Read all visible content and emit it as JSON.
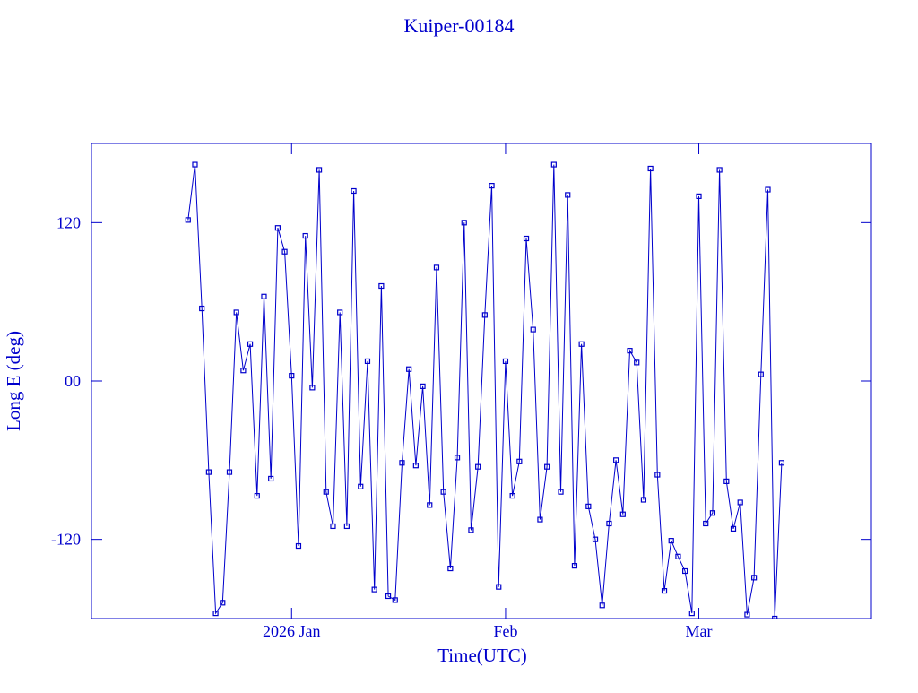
{
  "chart_data": {
    "type": "line",
    "title": "Kuiper-00184",
    "x_label": "Time(UTC)",
    "y_label": "Long E (deg)",
    "xlim": [
      "2025-12-03",
      "2026-03-26"
    ],
    "xticks": [
      {
        "value": "2026-01-01",
        "label": "2026 Jan"
      },
      {
        "value": "2026-02-01",
        "label": "Feb"
      },
      {
        "value": "2026-03-01",
        "label": "Mar"
      }
    ],
    "ylim": [
      -180,
      180
    ],
    "yticks": [
      {
        "value": 120,
        "label": "120"
      },
      {
        "value": 0,
        "label": "00"
      },
      {
        "value": -120,
        "label": "-120"
      }
    ],
    "series": [
      {
        "color": "#0000cc",
        "x": [
          "2025-12-17",
          "2025-12-18",
          "2025-12-19",
          "2025-12-20",
          "2025-12-21",
          "2025-12-22",
          "2025-12-23",
          "2025-12-24",
          "2025-12-25",
          "2025-12-26",
          "2025-12-27",
          "2025-12-28",
          "2025-12-29",
          "2025-12-30",
          "2025-12-31",
          "2026-01-01",
          "2026-01-02",
          "2026-01-03",
          "2026-01-04",
          "2026-01-05",
          "2026-01-06",
          "2026-01-07",
          "2026-01-08",
          "2026-01-09",
          "2026-01-10",
          "2026-01-11",
          "2026-01-12",
          "2026-01-13",
          "2026-01-14",
          "2026-01-15",
          "2026-01-16",
          "2026-01-17",
          "2026-01-18",
          "2026-01-19",
          "2026-01-20",
          "2026-01-21",
          "2026-01-22",
          "2026-01-23",
          "2026-01-24",
          "2026-01-25",
          "2026-01-26",
          "2026-01-27",
          "2026-01-28",
          "2026-01-29",
          "2026-01-30",
          "2026-01-31",
          "2026-02-01",
          "2026-02-02",
          "2026-02-03",
          "2026-02-04",
          "2026-02-05",
          "2026-02-06",
          "2026-02-07",
          "2026-02-08",
          "2026-02-09",
          "2026-02-10",
          "2026-02-11",
          "2026-02-12",
          "2026-02-13",
          "2026-02-14",
          "2026-02-15",
          "2026-02-16",
          "2026-02-17",
          "2026-02-18",
          "2026-02-19",
          "2026-02-20",
          "2026-02-21",
          "2026-02-22",
          "2026-02-23",
          "2026-02-24",
          "2026-02-25",
          "2026-02-26",
          "2026-02-27",
          "2026-02-28",
          "2026-03-01",
          "2026-03-02",
          "2026-03-03",
          "2026-03-04",
          "2026-03-05",
          "2026-03-06",
          "2026-03-07",
          "2026-03-08",
          "2026-03-09",
          "2026-03-10",
          "2026-03-11",
          "2026-03-12",
          "2026-03-13"
        ],
        "values": [
          122,
          164,
          55,
          -69,
          -176,
          -168,
          -69,
          52,
          8,
          28,
          -87,
          64,
          -74,
          116,
          98,
          4,
          -125,
          110,
          -5,
          160,
          -84,
          -110,
          52,
          -110,
          144,
          -80,
          15,
          -158,
          72,
          -163,
          -166,
          -62,
          9,
          -64,
          -4,
          -94,
          86,
          -84,
          -142,
          -58,
          120,
          -113,
          -65,
          50,
          148,
          -156,
          15,
          -87,
          -61,
          108,
          39,
          -105,
          -65,
          164,
          -84,
          141,
          -140,
          28,
          -95,
          -120,
          -170,
          -108,
          -60,
          -101,
          23,
          14,
          -90,
          161,
          -71,
          -159,
          -121,
          -133,
          -144,
          -176,
          140,
          -108,
          -100,
          160,
          -76,
          -112,
          -92,
          -177,
          -149,
          5,
          145,
          -180,
          -62
        ]
      }
    ]
  }
}
